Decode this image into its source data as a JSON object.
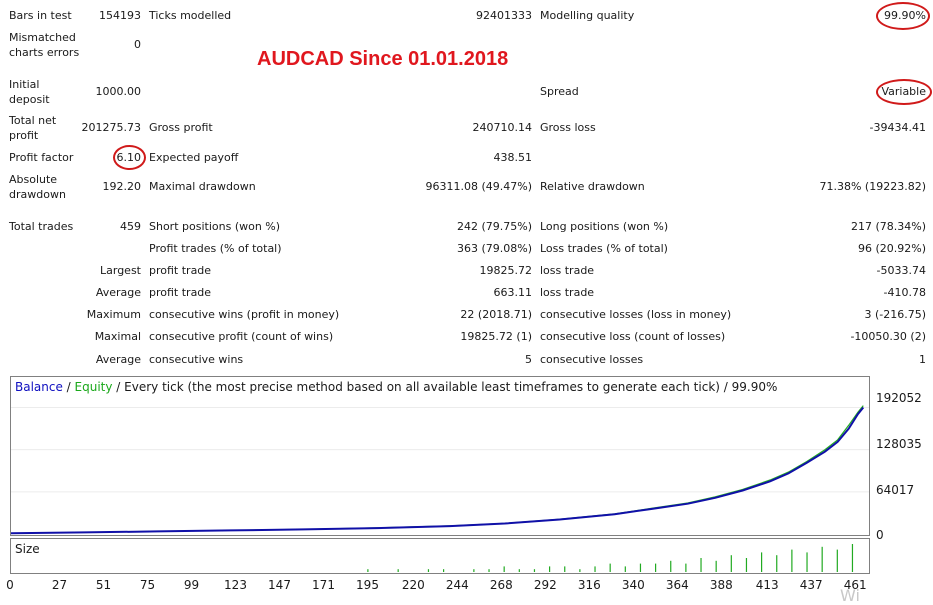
{
  "title": "AUDCAD Since 01.01.2018",
  "rows": {
    "bars_label": "Bars in test",
    "bars_value": "154193",
    "ticks_label": "Ticks modelled",
    "ticks_value": "92401333",
    "quality_label": "Modelling quality",
    "quality_value": "99.90%",
    "mismatch_label": "Mismatched charts errors",
    "mismatch_value": "0",
    "deposit_label": "Initial deposit",
    "deposit_value": "1000.00",
    "spread_label": "Spread",
    "spread_value": "Variable",
    "net_label": "Total net profit",
    "net_value": "201275.73",
    "gross_profit_label": "Gross profit",
    "gross_profit_value": "240710.14",
    "gross_loss_label": "Gross loss",
    "gross_loss_value": "-39434.41",
    "pf_label": "Profit factor",
    "pf_value": "6.10",
    "payoff_label": "Expected payoff",
    "payoff_value": "438.51",
    "abs_dd_label": "Absolute drawdown",
    "abs_dd_value": "192.20",
    "max_dd_label": "Maximal drawdown",
    "max_dd_value": "96311.08 (49.47%)",
    "rel_dd_label": "Relative drawdown",
    "rel_dd_value": "71.38% (19223.82)",
    "trades_label": "Total trades",
    "trades_value": "459",
    "short_label": "Short positions (won %)",
    "short_value": "242 (79.75%)",
    "long_label": "Long positions (won %)",
    "long_value": "217 (78.34%)",
    "ptrades_label": "Profit trades (% of total)",
    "ptrades_value": "363 (79.08%)",
    "ltrades_label": "Loss trades (% of total)",
    "ltrades_value": "96 (20.92%)",
    "largest_label": "Largest",
    "largest_profit_label": "profit trade",
    "largest_profit_value": "19825.72",
    "largest_loss_label": "loss trade",
    "largest_loss_value": "-5033.74",
    "average_label": "Average",
    "average_profit_label": "profit trade",
    "average_profit_value": "663.11",
    "average_loss_label": "loss trade",
    "average_loss_value": "-410.78",
    "maximum_label": "Maximum",
    "max_wins_label": "consecutive wins (profit in money)",
    "max_wins_value": "22 (2018.71)",
    "max_losses_label": "consecutive losses (loss in money)",
    "max_losses_value": "3 (-216.75)",
    "maximal_label": "Maximal",
    "maxl_profit_label": "consecutive profit (count of wins)",
    "maxl_profit_value": "19825.72 (1)",
    "maxl_loss_label": "consecutive loss (count of losses)",
    "maxl_loss_value": "-10050.30 (2)",
    "avg2_label": "Average",
    "avg_wins_label": "consecutive wins",
    "avg_wins_value": "5",
    "avg_losses_label": "consecutive losses",
    "avg_losses_value": "1"
  },
  "chart": {
    "legend_balance": "Balance",
    "legend_sep1": " / ",
    "legend_equity": "Equity",
    "legend_rest": " / Every tick (the most precise method based on all available least timeframes to generate each tick) / 99.90%",
    "size_label": "Size",
    "y_labels": [
      "192052",
      "128035",
      "64017",
      "0"
    ],
    "x_labels": [
      "0",
      "27",
      "51",
      "75",
      "99",
      "123",
      "147",
      "171",
      "195",
      "220",
      "244",
      "268",
      "292",
      "316",
      "340",
      "364",
      "388",
      "413",
      "437",
      "461"
    ],
    "watermark": "Wi"
  },
  "chart_data": {
    "type": "line",
    "x_max": 468,
    "ylim": [
      0,
      205000
    ],
    "series": [
      {
        "name": "Balance",
        "color": "#1010a8",
        "points": [
          [
            0,
            1000
          ],
          [
            40,
            2500
          ],
          [
            80,
            4000
          ],
          [
            120,
            5500
          ],
          [
            160,
            7000
          ],
          [
            200,
            9000
          ],
          [
            240,
            12000
          ],
          [
            270,
            16000
          ],
          [
            300,
            22000
          ],
          [
            330,
            30000
          ],
          [
            350,
            38000
          ],
          [
            370,
            46000
          ],
          [
            385,
            55000
          ],
          [
            400,
            66000
          ],
          [
            415,
            80000
          ],
          [
            425,
            92000
          ],
          [
            435,
            108000
          ],
          [
            445,
            125000
          ],
          [
            452,
            140000
          ],
          [
            458,
            160000
          ],
          [
            463,
            182000
          ],
          [
            466,
            192052
          ]
        ]
      },
      {
        "name": "Equity",
        "color": "#22aa22",
        "points": [
          [
            0,
            1000
          ],
          [
            40,
            2600
          ],
          [
            80,
            4100
          ],
          [
            120,
            5600
          ],
          [
            160,
            7100
          ],
          [
            200,
            9200
          ],
          [
            240,
            12300
          ],
          [
            270,
            16300
          ],
          [
            300,
            22500
          ],
          [
            330,
            30500
          ],
          [
            350,
            38800
          ],
          [
            370,
            47000
          ],
          [
            385,
            56500
          ],
          [
            400,
            67500
          ],
          [
            415,
            82000
          ],
          [
            425,
            94000
          ],
          [
            435,
            110000
          ],
          [
            445,
            128000
          ],
          [
            452,
            143000
          ],
          [
            458,
            165000
          ],
          [
            463,
            185000
          ],
          [
            466,
            195000
          ]
        ]
      }
    ],
    "size_bars": [
      0,
      0,
      0,
      0,
      0,
      0,
      0,
      0,
      0,
      0,
      0,
      0,
      0,
      0,
      0,
      0,
      0,
      0,
      0,
      0,
      0,
      0,
      0,
      1,
      0,
      1,
      0,
      1,
      1,
      0,
      1,
      1,
      2,
      1,
      1,
      2,
      2,
      1,
      2,
      3,
      2,
      3,
      3,
      4,
      3,
      5,
      4,
      6,
      5,
      7,
      6,
      8,
      7,
      9,
      8,
      10
    ]
  },
  "colors": {
    "balance": "#1010a8",
    "equity": "#22aa22",
    "annotation": "#d01a1a",
    "title": "#e0171e"
  }
}
